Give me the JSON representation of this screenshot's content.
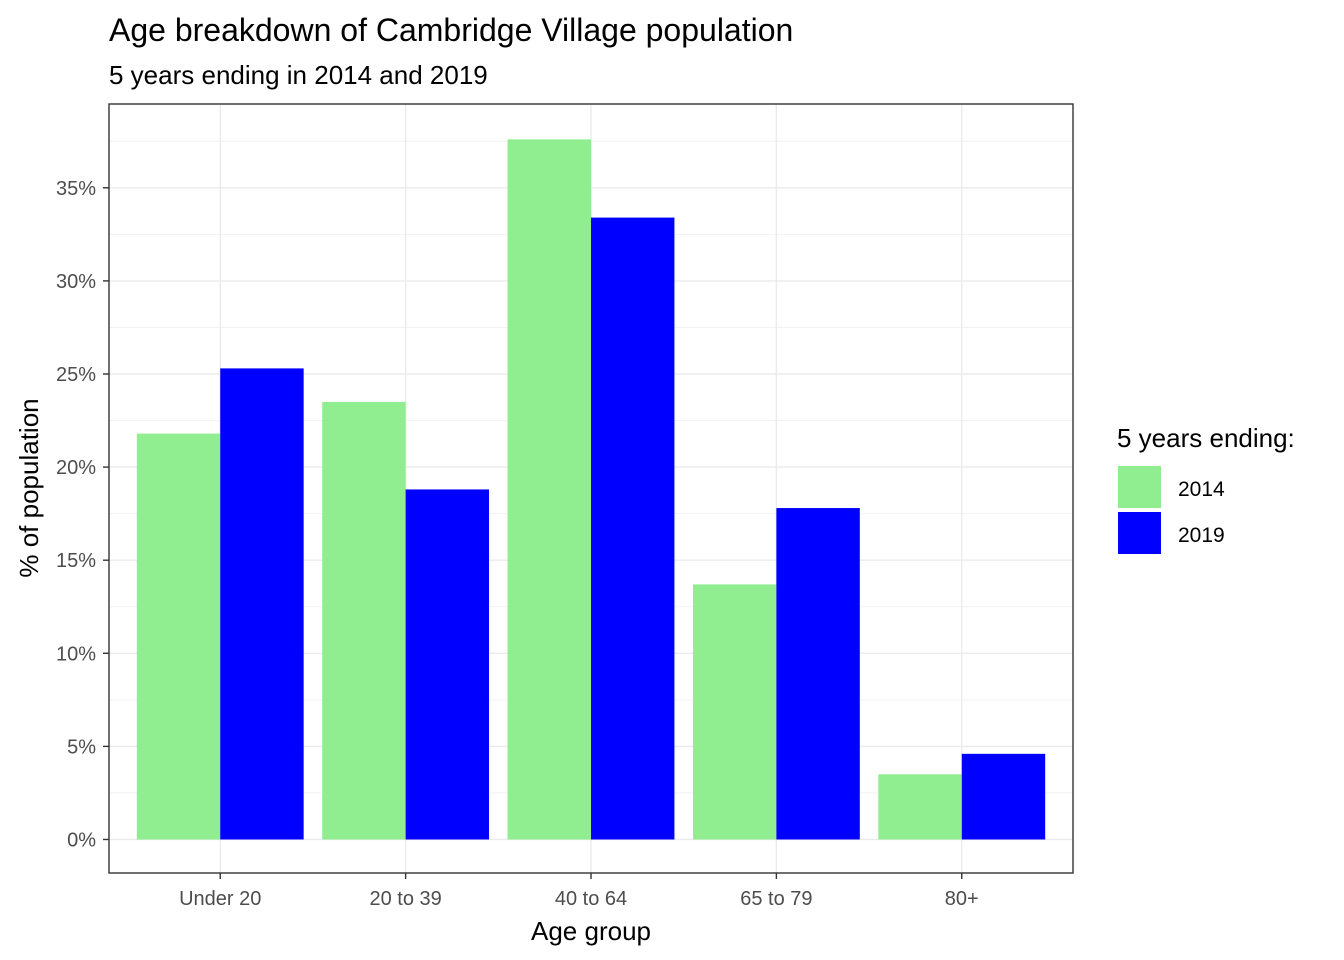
{
  "chart_data": {
    "type": "bar",
    "title": "Age breakdown of Cambridge Village population",
    "subtitle": "5 years ending in 2014 and 2019",
    "xlabel": "Age group",
    "ylabel": "% of population",
    "categories": [
      "Under 20",
      "20 to 39",
      "40 to 64",
      "65 to 79",
      "80+"
    ],
    "series": [
      {
        "name": "2014",
        "color": "#90EE90",
        "values": [
          21.8,
          23.5,
          37.6,
          13.7,
          3.5
        ]
      },
      {
        "name": "2019",
        "color": "#0000FF",
        "values": [
          25.3,
          18.8,
          33.4,
          17.8,
          4.6
        ]
      }
    ],
    "ylim": [
      -1.8,
      39.5
    ],
    "yticks": [
      0,
      5,
      10,
      15,
      20,
      25,
      30,
      35
    ],
    "ytick_labels": [
      "0%",
      "5%",
      "10%",
      "15%",
      "20%",
      "25%",
      "30%",
      "35%"
    ],
    "grid": true,
    "legend": {
      "title": "5 years ending:",
      "position": "right"
    }
  }
}
